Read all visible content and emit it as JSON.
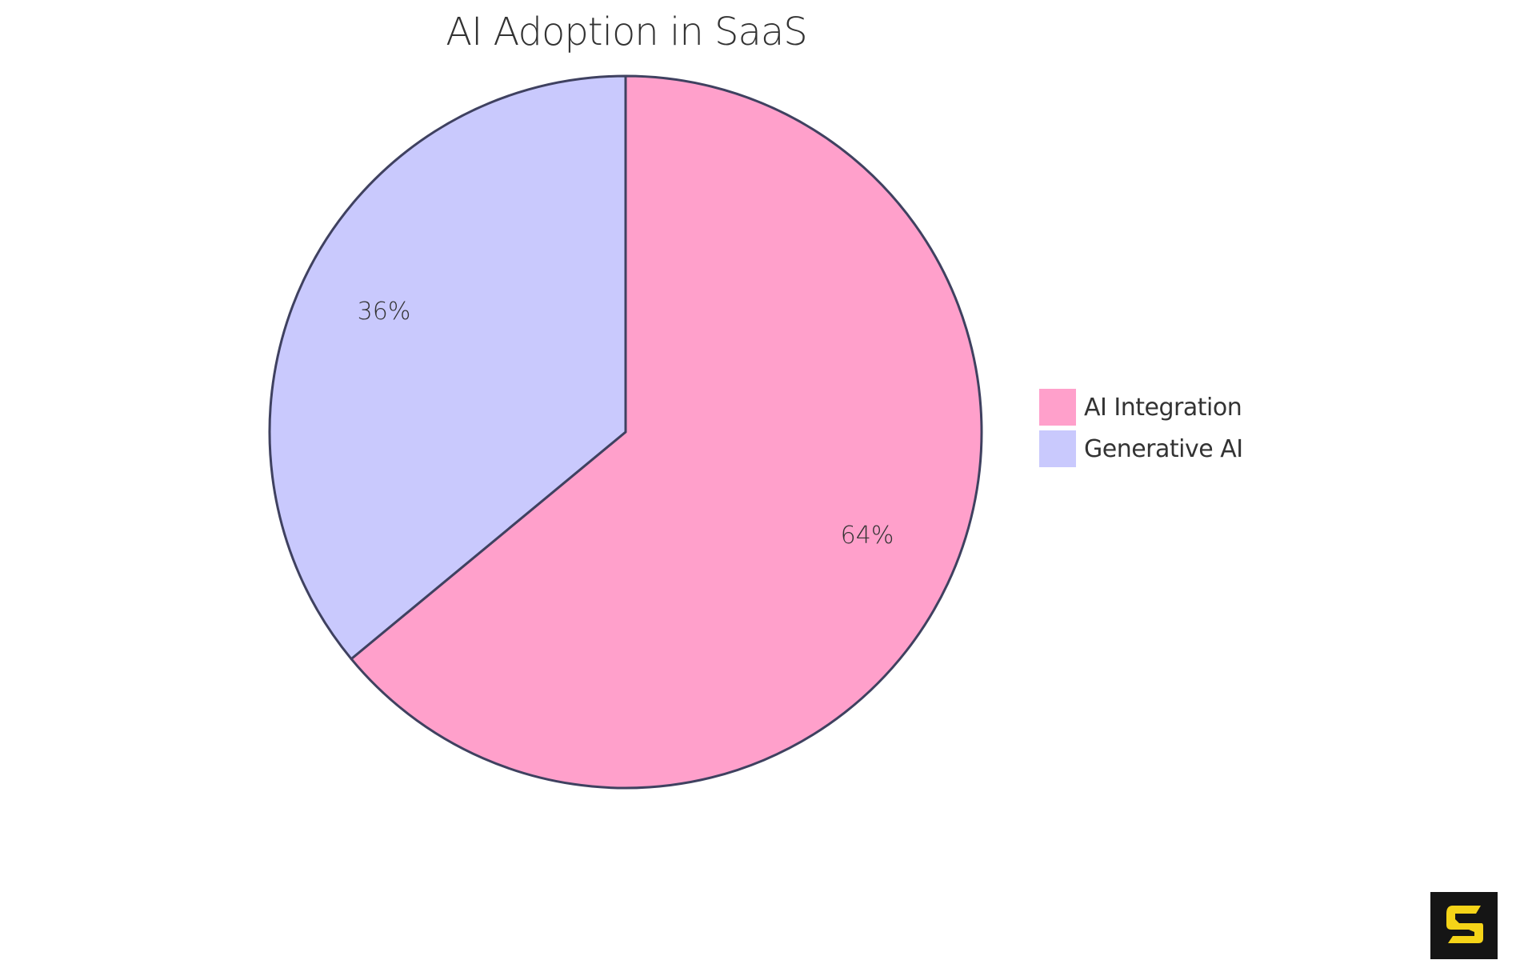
{
  "chart_data": {
    "type": "pie",
    "title": "AI Adoption in SaaS",
    "categories": [
      "AI Integration",
      "Generative AI"
    ],
    "values": [
      64,
      36
    ],
    "labels": [
      "64%",
      "36%"
    ],
    "colors": [
      "#FFA0CB",
      "#C9C9FD"
    ],
    "stroke_color": "#3F4160",
    "legend": {
      "position": "right",
      "entries": [
        "AI Integration",
        "Generative AI"
      ]
    },
    "start_angle_deg": 0,
    "direction": "clockwise"
  },
  "title": "AI Adoption in SaaS",
  "legend": {
    "items": [
      {
        "label": "AI Integration",
        "color": "#FFA0CB"
      },
      {
        "label": "Generative AI",
        "color": "#C9C9FD"
      }
    ]
  },
  "slices": [
    {
      "label": "64%",
      "value": 64,
      "color": "#FFA0CB"
    },
    {
      "label": "36%",
      "value": 36,
      "color": "#C9C9FD"
    }
  ],
  "brand": {
    "icon": "stylized-s-logo-icon",
    "background": "#151515",
    "foreground": "#F5D418"
  }
}
